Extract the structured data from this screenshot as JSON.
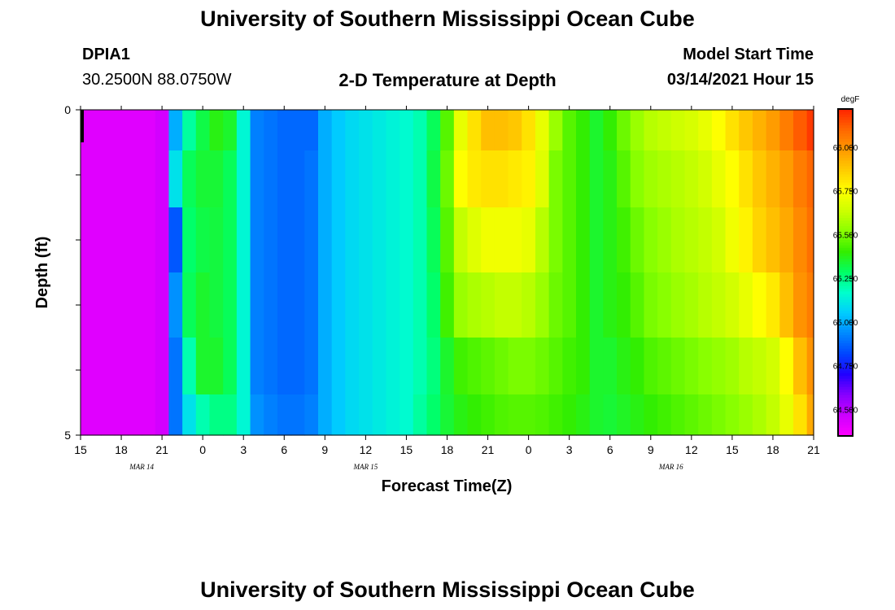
{
  "header": {
    "title": "University of Southern Mississippi Ocean Cube",
    "station": "DPIA1",
    "coords": "30.2500N 88.0750W",
    "plot_title": "2-D Temperature at Depth",
    "model_start_label": "Model Start Time",
    "model_start_value": "03/14/2021 Hour 15"
  },
  "footer": {
    "title": "University of Southern Mississippi Ocean Cube"
  },
  "chart_data": {
    "type": "heatmap",
    "title": "2-D Temperature at Depth",
    "xlabel": "Forecast Time(Z)",
    "ylabel": "Depth (ft)",
    "x_tick_labels": [
      "15",
      "18",
      "21",
      "0",
      "3",
      "6",
      "9",
      "12",
      "15",
      "18",
      "21",
      "0",
      "3",
      "6",
      "9",
      "12",
      "15",
      "18",
      "21"
    ],
    "x_day_labels": [
      {
        "label": "MAR 14",
        "tick_index": 1.5
      },
      {
        "label": "MAR 15",
        "tick_index": 7
      },
      {
        "label": "MAR 16",
        "tick_index": 14.5
      }
    ],
    "x_range_hours": [
      0,
      54
    ],
    "y_tick_labels": [
      "0",
      "5"
    ],
    "y_range": [
      0,
      5
    ],
    "depth_rows": [
      0.25,
      1.0,
      2.0,
      3.0,
      4.0,
      4.75
    ],
    "time_hours": [
      0,
      1,
      2,
      3,
      4,
      5,
      6,
      7,
      8,
      9,
      10,
      11,
      12,
      13,
      14,
      15,
      16,
      17,
      18,
      19,
      20,
      21,
      22,
      23,
      24,
      25,
      26,
      27,
      28,
      29,
      30,
      31,
      32,
      33,
      34,
      35,
      36,
      37,
      38,
      39,
      40,
      41,
      42,
      43,
      44,
      45,
      46,
      47,
      48,
      49,
      50,
      51,
      52,
      53,
      54
    ],
    "values": [
      [
        64.42,
        64.42,
        64.42,
        64.42,
        64.42,
        64.42,
        64.45,
        65.0,
        65.22,
        65.32,
        65.38,
        65.35,
        65.15,
        64.92,
        64.9,
        64.88,
        64.88,
        64.88,
        65.0,
        65.05,
        65.08,
        65.1,
        65.12,
        65.14,
        65.16,
        65.2,
        65.3,
        65.45,
        65.7,
        65.82,
        65.9,
        65.9,
        65.88,
        65.82,
        65.7,
        65.55,
        65.45,
        65.4,
        65.35,
        65.4,
        65.48,
        65.55,
        65.6,
        65.62,
        65.64,
        65.66,
        65.7,
        65.75,
        65.82,
        65.88,
        65.93,
        65.98,
        66.05,
        66.12,
        66.18
      ],
      [
        64.42,
        64.42,
        64.42,
        64.42,
        64.42,
        64.42,
        64.45,
        65.1,
        65.3,
        65.34,
        65.34,
        65.3,
        65.15,
        64.92,
        64.9,
        64.88,
        64.88,
        64.9,
        65.0,
        65.05,
        65.08,
        65.1,
        65.12,
        65.14,
        65.16,
        65.2,
        65.32,
        65.48,
        65.75,
        65.8,
        65.82,
        65.82,
        65.8,
        65.78,
        65.68,
        65.5,
        65.45,
        65.4,
        65.35,
        65.38,
        65.45,
        65.52,
        65.56,
        65.58,
        65.6,
        65.62,
        65.65,
        65.7,
        65.75,
        65.82,
        65.88,
        65.93,
        65.98,
        66.05,
        66.1
      ],
      [
        64.42,
        64.42,
        64.42,
        64.42,
        64.42,
        64.42,
        64.45,
        64.85,
        65.28,
        65.32,
        65.33,
        65.3,
        65.15,
        64.92,
        64.9,
        64.88,
        64.88,
        64.9,
        65.0,
        65.05,
        65.08,
        65.1,
        65.12,
        65.14,
        65.16,
        65.2,
        65.3,
        65.45,
        65.62,
        65.68,
        65.72,
        65.72,
        65.72,
        65.7,
        65.6,
        65.5,
        65.45,
        65.4,
        65.35,
        65.38,
        65.42,
        65.48,
        65.52,
        65.55,
        65.58,
        65.6,
        65.62,
        65.65,
        65.72,
        65.78,
        65.85,
        65.9,
        65.95,
        66.02,
        66.08
      ],
      [
        64.42,
        64.42,
        64.42,
        64.42,
        64.42,
        64.42,
        64.45,
        64.95,
        65.3,
        65.35,
        65.33,
        65.3,
        65.15,
        64.92,
        64.9,
        64.88,
        64.88,
        64.9,
        65.0,
        65.05,
        65.08,
        65.1,
        65.12,
        65.14,
        65.16,
        65.2,
        65.28,
        65.42,
        65.55,
        65.58,
        65.6,
        65.62,
        65.62,
        65.6,
        65.55,
        65.48,
        65.45,
        65.4,
        65.35,
        65.38,
        65.4,
        65.45,
        65.5,
        65.52,
        65.55,
        65.57,
        65.6,
        65.62,
        65.65,
        65.7,
        65.75,
        65.8,
        65.9,
        66.0,
        66.05
      ],
      [
        64.42,
        64.42,
        64.42,
        64.42,
        64.42,
        64.42,
        64.45,
        64.9,
        65.2,
        65.35,
        65.35,
        65.3,
        65.15,
        64.92,
        64.9,
        64.88,
        64.88,
        64.9,
        65.0,
        65.05,
        65.08,
        65.1,
        65.12,
        65.14,
        65.16,
        65.2,
        65.26,
        65.35,
        65.42,
        65.44,
        65.46,
        65.48,
        65.5,
        65.5,
        65.48,
        65.45,
        65.42,
        65.4,
        65.35,
        65.35,
        65.38,
        65.4,
        65.44,
        65.46,
        65.48,
        65.5,
        65.52,
        65.54,
        65.56,
        65.6,
        65.62,
        65.65,
        65.75,
        65.9,
        66.0
      ],
      [
        64.42,
        64.42,
        64.42,
        64.42,
        64.42,
        64.42,
        64.45,
        64.9,
        65.1,
        65.2,
        65.25,
        65.25,
        65.15,
        64.95,
        64.92,
        64.9,
        64.9,
        64.92,
        65.0,
        65.05,
        65.08,
        65.1,
        65.12,
        65.14,
        65.16,
        65.22,
        65.28,
        65.34,
        65.38,
        65.4,
        65.42,
        65.44,
        65.45,
        65.45,
        65.44,
        65.42,
        65.4,
        65.38,
        65.35,
        65.34,
        65.36,
        65.38,
        65.4,
        65.42,
        65.44,
        65.46,
        65.48,
        65.5,
        65.52,
        65.55,
        65.58,
        65.62,
        65.7,
        65.82,
        65.95
      ]
    ],
    "colorbar": {
      "unit": "degF",
      "tick_labels": [
        "64.500",
        "64.750",
        "65.000",
        "65.250",
        "65.500",
        "65.750",
        "66.000"
      ],
      "tick_values": [
        64.5,
        64.75,
        65.0,
        65.25,
        65.5,
        65.75,
        66.0
      ],
      "range": [
        64.35,
        66.22
      ]
    },
    "colormap_stops": [
      "#ff00ff",
      "#cc00ff",
      "#8800ff",
      "#2200ff",
      "#0044ff",
      "#0088ff",
      "#00ccff",
      "#00ffcc",
      "#00ff66",
      "#33ee00",
      "#88ff00",
      "#ccff00",
      "#ffff00",
      "#ffcc00",
      "#ff9900",
      "#ff6600",
      "#ff2200"
    ]
  }
}
